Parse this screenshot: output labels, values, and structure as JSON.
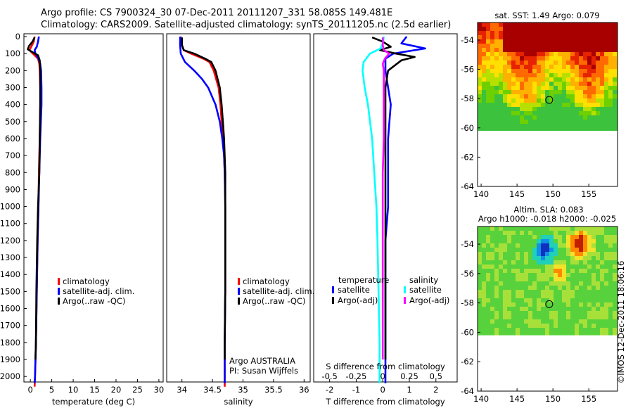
{
  "title": {
    "line1": "Argo profile: CS 7900324_30 07-Dec-2011 20111207_331 58.085S 149.481E",
    "line2": "Climatology: CARS2009. Satellite-adjusted climatology: synTS_20111205.nc (2.5d earlier)"
  },
  "colors": {
    "climatology": "#ff0000",
    "satellite": "#0000ff",
    "argo": "#000000",
    "sal_satellite": "#00ffff",
    "sal_argo": "#ff00ff"
  },
  "chart_data": [
    {
      "type": "line",
      "panel": "temperature",
      "xlabel": "temperature (deg C)",
      "xlim": [
        -1.5,
        31
      ],
      "xticks": [
        0,
        5,
        10,
        15,
        20,
        25,
        30
      ],
      "ylim": [
        2080,
        0
      ],
      "yticks": [
        0,
        100,
        200,
        300,
        400,
        500,
        600,
        700,
        800,
        900,
        1000,
        1100,
        1200,
        1300,
        1400,
        1500,
        1600,
        1700,
        1800,
        1900,
        2000
      ],
      "y_reversed": true,
      "legend": [
        "climatology",
        "satellite-adj. clim.",
        "Argo(..raw -QC)"
      ],
      "series": [
        {
          "name": "climatology",
          "y": [
            0,
            30,
            60,
            80,
            100,
            130,
            160,
            200,
            300,
            400,
            600,
            800,
            1000,
            1200,
            1500,
            1800,
            2000,
            2060
          ],
          "x": [
            1.0,
            0.8,
            0.2,
            -0.2,
            0.6,
            1.8,
            2.1,
            2.2,
            2.3,
            2.3,
            2.2,
            2.0,
            1.9,
            1.7,
            1.5,
            1.3,
            1.1,
            1.0
          ]
        },
        {
          "name": "satellite-adj. clim.",
          "y": [
            0,
            30,
            60,
            80,
            100,
            130,
            160,
            200,
            300,
            400,
            600,
            800,
            1000,
            1200,
            1500,
            1800,
            2000,
            2040
          ],
          "x": [
            2.0,
            1.8,
            1.5,
            1.0,
            1.2,
            1.9,
            2.3,
            2.5,
            2.6,
            2.6,
            2.3,
            2.1,
            1.9,
            1.7,
            1.5,
            1.3,
            1.1,
            1.0
          ]
        },
        {
          "name": "Argo(..raw -QC)",
          "y": [
            5,
            30,
            55,
            75,
            90,
            110,
            140,
            200,
            300,
            400,
            600,
            800,
            1000,
            1200,
            1500,
            1800,
            1900
          ],
          "x": [
            1.0,
            0.5,
            -0.3,
            -0.6,
            0.4,
            1.8,
            2.2,
            2.3,
            2.3,
            2.3,
            2.2,
            2.1,
            1.8,
            1.6,
            1.4,
            1.3,
            1.2
          ]
        }
      ]
    },
    {
      "type": "line",
      "panel": "salinity",
      "xlabel": "salinity",
      "xlim": [
        33.75,
        36.1
      ],
      "xticks": [
        34,
        34.5,
        35,
        35.5,
        36
      ],
      "ylim": [
        2080,
        0
      ],
      "y_reversed": true,
      "legend": [
        "climatology",
        "satellite-adj. clim.",
        "Argo(..raw -QC)"
      ],
      "annotations": [
        "Argo AUSTRALIA",
        "PI: Susan Wijffels"
      ],
      "series": [
        {
          "name": "climatology",
          "y": [
            0,
            50,
            80,
            100,
            130,
            150,
            200,
            300,
            400,
            500,
            600,
            800,
            1000,
            1200,
            1500,
            1800,
            2000,
            2060
          ],
          "x": [
            33.98,
            34.0,
            34.03,
            34.15,
            34.35,
            34.45,
            34.52,
            34.6,
            34.63,
            34.65,
            34.68,
            34.7,
            34.71,
            34.71,
            34.71,
            34.7,
            34.7,
            34.7
          ]
        },
        {
          "name": "satellite-adj. clim.",
          "y": [
            0,
            50,
            100,
            150,
            200,
            250,
            300,
            400,
            500,
            600,
            700,
            800,
            1000,
            1200,
            1500,
            1800,
            2000,
            2040
          ],
          "x": [
            33.97,
            33.97,
            33.98,
            34.05,
            34.2,
            34.33,
            34.43,
            34.55,
            34.62,
            34.66,
            34.69,
            34.7,
            34.71,
            34.71,
            34.71,
            34.7,
            34.7,
            34.7
          ]
        },
        {
          "name": "Argo(..raw -QC)",
          "y": [
            5,
            50,
            80,
            100,
            130,
            150,
            200,
            300,
            400,
            500,
            600,
            800,
            1000,
            1200,
            1500,
            1800,
            1900
          ],
          "x": [
            34.0,
            34.0,
            34.03,
            34.2,
            34.38,
            34.48,
            34.55,
            34.62,
            34.65,
            34.67,
            34.69,
            34.71,
            34.71,
            34.71,
            34.71,
            34.7,
            34.7
          ]
        }
      ]
    },
    {
      "type": "line",
      "panel": "difference",
      "xlabel": "T difference from climatology",
      "xlim": [
        -2.6,
        2.8
      ],
      "xticks": [
        -2,
        -1,
        0,
        1,
        2
      ],
      "top_label": "S difference from climatology",
      "sticks": [
        "-0.5",
        "-0.25",
        "0",
        "0.25",
        "0.5"
      ],
      "ylim": [
        2080,
        0
      ],
      "y_reversed": true,
      "legend_titles": [
        "temperature",
        "salinity"
      ],
      "legend": [
        "satellite",
        "Argo(-adj)",
        "satellite",
        "Argo(-adj)"
      ],
      "series": [
        {
          "name": "temperature satellite",
          "y": [
            0,
            40,
            70,
            100,
            130,
            160,
            200,
            300,
            400,
            600,
            800,
            1000,
            1200,
            1500,
            1800,
            2000,
            2040
          ],
          "x": [
            0.9,
            0.7,
            1.6,
            0.4,
            0.1,
            0.1,
            0.1,
            0.2,
            0.3,
            0.2,
            0.2,
            0.2,
            0.1,
            0.1,
            0.1,
            0.1,
            0.1
          ]
        },
        {
          "name": "temperature Argo(-adj)",
          "y": [
            5,
            30,
            60,
            80,
            100,
            120,
            140,
            200,
            300,
            400,
            600,
            800,
            1000,
            1200,
            1500,
            1800,
            1900
          ],
          "x": [
            -0.4,
            0.0,
            0.3,
            -0.1,
            0.5,
            1.2,
            0.7,
            0.2,
            0.1,
            0.1,
            0.1,
            0.1,
            0.1,
            0.1,
            0.1,
            0.1,
            0.1
          ]
        },
        {
          "name": "salinity satellite",
          "y": [
            0,
            40,
            70,
            100,
            150,
            200,
            300,
            400,
            500,
            600,
            800,
            1000,
            1200,
            1500,
            1800,
            2000,
            2040
          ],
          "x": [
            0.01,
            0.0,
            -0.02,
            -0.12,
            -0.18,
            -0.19,
            -0.17,
            -0.14,
            -0.12,
            -0.1,
            -0.08,
            -0.06,
            -0.05,
            -0.04,
            -0.03,
            -0.03,
            -0.03
          ]
        },
        {
          "name": "salinity Argo(-adj)",
          "y": [
            5,
            50,
            80,
            100,
            130,
            160,
            200,
            300,
            400,
            600,
            800,
            1000,
            1200,
            1500,
            1800,
            1900
          ],
          "x": [
            0.0,
            0.0,
            0.01,
            0.06,
            0.02,
            0.0,
            0.01,
            0.01,
            0.01,
            0.01,
            0.0,
            0.0,
            0.0,
            0.0,
            0.0,
            0.0
          ]
        }
      ]
    },
    {
      "type": "heatmap",
      "panel": "sst_map",
      "title": "sat. SST: 1.49 Argo: 0.079",
      "xlim": [
        139.5,
        159
      ],
      "ylim": [
        -64,
        -52.8
      ],
      "xticks": [
        140,
        145,
        150,
        155
      ],
      "yticks": [
        -54,
        -56,
        -58,
        -60,
        -62,
        -64
      ],
      "data_extent_lat": [
        -60.2,
        -52.8
      ],
      "argo_position": {
        "lon": 149.481,
        "lat": -58.085
      }
    },
    {
      "type": "heatmap",
      "panel": "sla_map",
      "title": "Altim. SLA: 0.083",
      "subtitle": "Argo h1000: -0.018 h2000: -0.025",
      "xlim": [
        139.5,
        159
      ],
      "ylim": [
        -64,
        -52.8
      ],
      "xticks": [
        140,
        145,
        150,
        155
      ],
      "yticks": [
        -54,
        -56,
        -58,
        -60,
        -62,
        -64
      ],
      "data_extent_lat": [
        -60.2,
        -52.8
      ],
      "argo_position": {
        "lon": 149.481,
        "lat": -58.085
      }
    }
  ],
  "credit": "©IMOS 12-Dec-2011 18:06:16"
}
